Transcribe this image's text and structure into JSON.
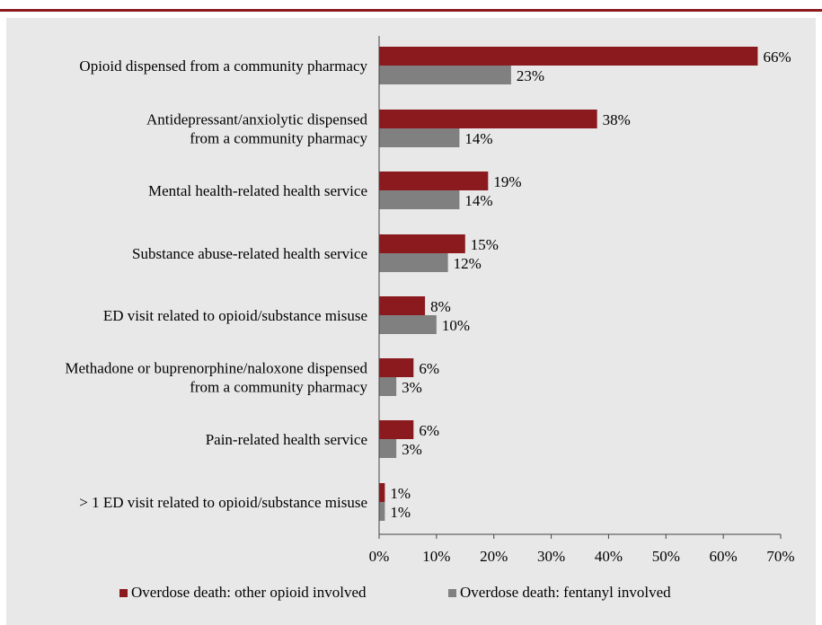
{
  "chart_data": {
    "type": "bar",
    "orientation": "horizontal",
    "categories": [
      [
        "Opioid dispensed from a community pharmacy"
      ],
      [
        "Antidepressant/anxiolytic dispensed",
        "from a community pharmacy"
      ],
      [
        "Mental health-related health service"
      ],
      [
        "Substance abuse-related health service"
      ],
      [
        "ED visit related to opioid/substance misuse"
      ],
      [
        "Methadone or buprenorphine/naloxone dispensed",
        "from a community pharmacy"
      ],
      [
        "Pain-related health service"
      ],
      [
        "> 1 ED visit related to opioid/substance misuse"
      ]
    ],
    "series": [
      {
        "name": "Overdose death: other opioid involved",
        "color": "#8b1a1f",
        "values": [
          66,
          38,
          19,
          15,
          8,
          6,
          6,
          1
        ],
        "labels": [
          "66%",
          "38%",
          "19%",
          "15%",
          "8%",
          "6%",
          "6%",
          "1%"
        ]
      },
      {
        "name": "Overdose death: fentanyl involved",
        "color": "#808080",
        "values": [
          23,
          14,
          14,
          12,
          10,
          3,
          3,
          1
        ],
        "labels": [
          "23%",
          "14%",
          "14%",
          "12%",
          "10%",
          "3%",
          "3%",
          "1%"
        ]
      }
    ],
    "xlim": [
      0,
      70
    ],
    "xticks": [
      0,
      10,
      20,
      30,
      40,
      50,
      60,
      70
    ],
    "xtick_labels": [
      "0%",
      "10%",
      "20%",
      "30%",
      "40%",
      "50%",
      "60%",
      "70%"
    ],
    "grid": false,
    "legend_position": "bottom"
  },
  "colors": {
    "accent": "#8b1a1f",
    "secondary": "#808080",
    "panel_bg": "#e8e8e8"
  }
}
